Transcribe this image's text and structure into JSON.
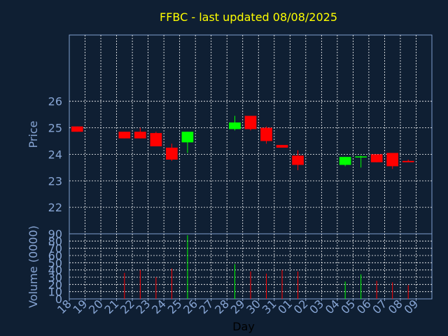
{
  "chart_data": {
    "type": "candlestick",
    "title": "FFBC - last updated 08/08/2025",
    "xlabel": "Day",
    "price_label": "Price",
    "volume_label": "Volume (0000)",
    "price_ylim": [
      21,
      28.5
    ],
    "price_ticks": [
      22,
      23,
      24,
      25,
      26
    ],
    "volume_ylim": [
      0,
      90
    ],
    "volume_ticks": [
      0,
      10,
      20,
      30,
      40,
      50,
      60,
      70,
      80,
      90
    ],
    "grid": true,
    "x_labels": [
      "18",
      "19",
      "20",
      "21",
      "22",
      "23",
      "24",
      "25",
      "26",
      "27",
      "28",
      "29",
      "30",
      "31",
      "01",
      "02",
      "03",
      "04",
      "05",
      "06",
      "07",
      "08",
      "09"
    ],
    "candles": [
      {
        "i": 0,
        "open": 25.05,
        "close": 24.85,
        "high": 25.05,
        "low": 24.85,
        "volume": 0
      },
      {
        "i": 3,
        "open": 24.85,
        "close": 24.6,
        "high": 24.85,
        "low": 24.6,
        "volume": 36
      },
      {
        "i": 4,
        "open": 24.85,
        "close": 24.6,
        "high": 25.0,
        "low": 24.6,
        "volume": 40
      },
      {
        "i": 5,
        "open": 24.8,
        "close": 24.3,
        "high": 24.85,
        "low": 24.3,
        "volume": 30
      },
      {
        "i": 6,
        "open": 24.25,
        "close": 23.8,
        "high": 24.4,
        "low": 23.75,
        "volume": 42
      },
      {
        "i": 7,
        "open": 24.45,
        "close": 24.85,
        "high": 24.85,
        "low": 24.05,
        "volume": 88
      },
      {
        "i": 10,
        "open": 24.95,
        "close": 25.2,
        "high": 25.45,
        "low": 24.9,
        "volume": 48
      },
      {
        "i": 11,
        "open": 25.45,
        "close": 24.95,
        "high": 25.45,
        "low": 24.9,
        "volume": 38
      },
      {
        "i": 12,
        "open": 25.0,
        "close": 24.5,
        "high": 25.05,
        "low": 24.4,
        "volume": 35
      },
      {
        "i": 13,
        "open": 24.35,
        "close": 24.25,
        "high": 24.35,
        "low": 24.25,
        "volume": 40
      },
      {
        "i": 14,
        "open": 23.95,
        "close": 23.6,
        "high": 24.15,
        "low": 23.4,
        "volume": 38
      },
      {
        "i": 17,
        "open": 23.6,
        "close": 23.9,
        "high": 23.9,
        "low": 23.55,
        "volume": 24
      },
      {
        "i": 18,
        "open": 23.88,
        "close": 23.92,
        "high": 23.95,
        "low": 23.5,
        "volume": 34
      },
      {
        "i": 19,
        "open": 24.0,
        "close": 23.7,
        "high": 24.0,
        "low": 23.7,
        "volume": 25
      },
      {
        "i": 20,
        "open": 24.05,
        "close": 23.55,
        "high": 24.05,
        "low": 23.45,
        "volume": 23
      },
      {
        "i": 21,
        "open": 23.75,
        "close": 23.7,
        "high": 23.8,
        "low": 23.7,
        "volume": 19
      }
    ],
    "up_color": "#00ff00",
    "down_color": "#ff0000",
    "text_color": "#ffff00",
    "axis_text_color": "#87a5d4"
  }
}
